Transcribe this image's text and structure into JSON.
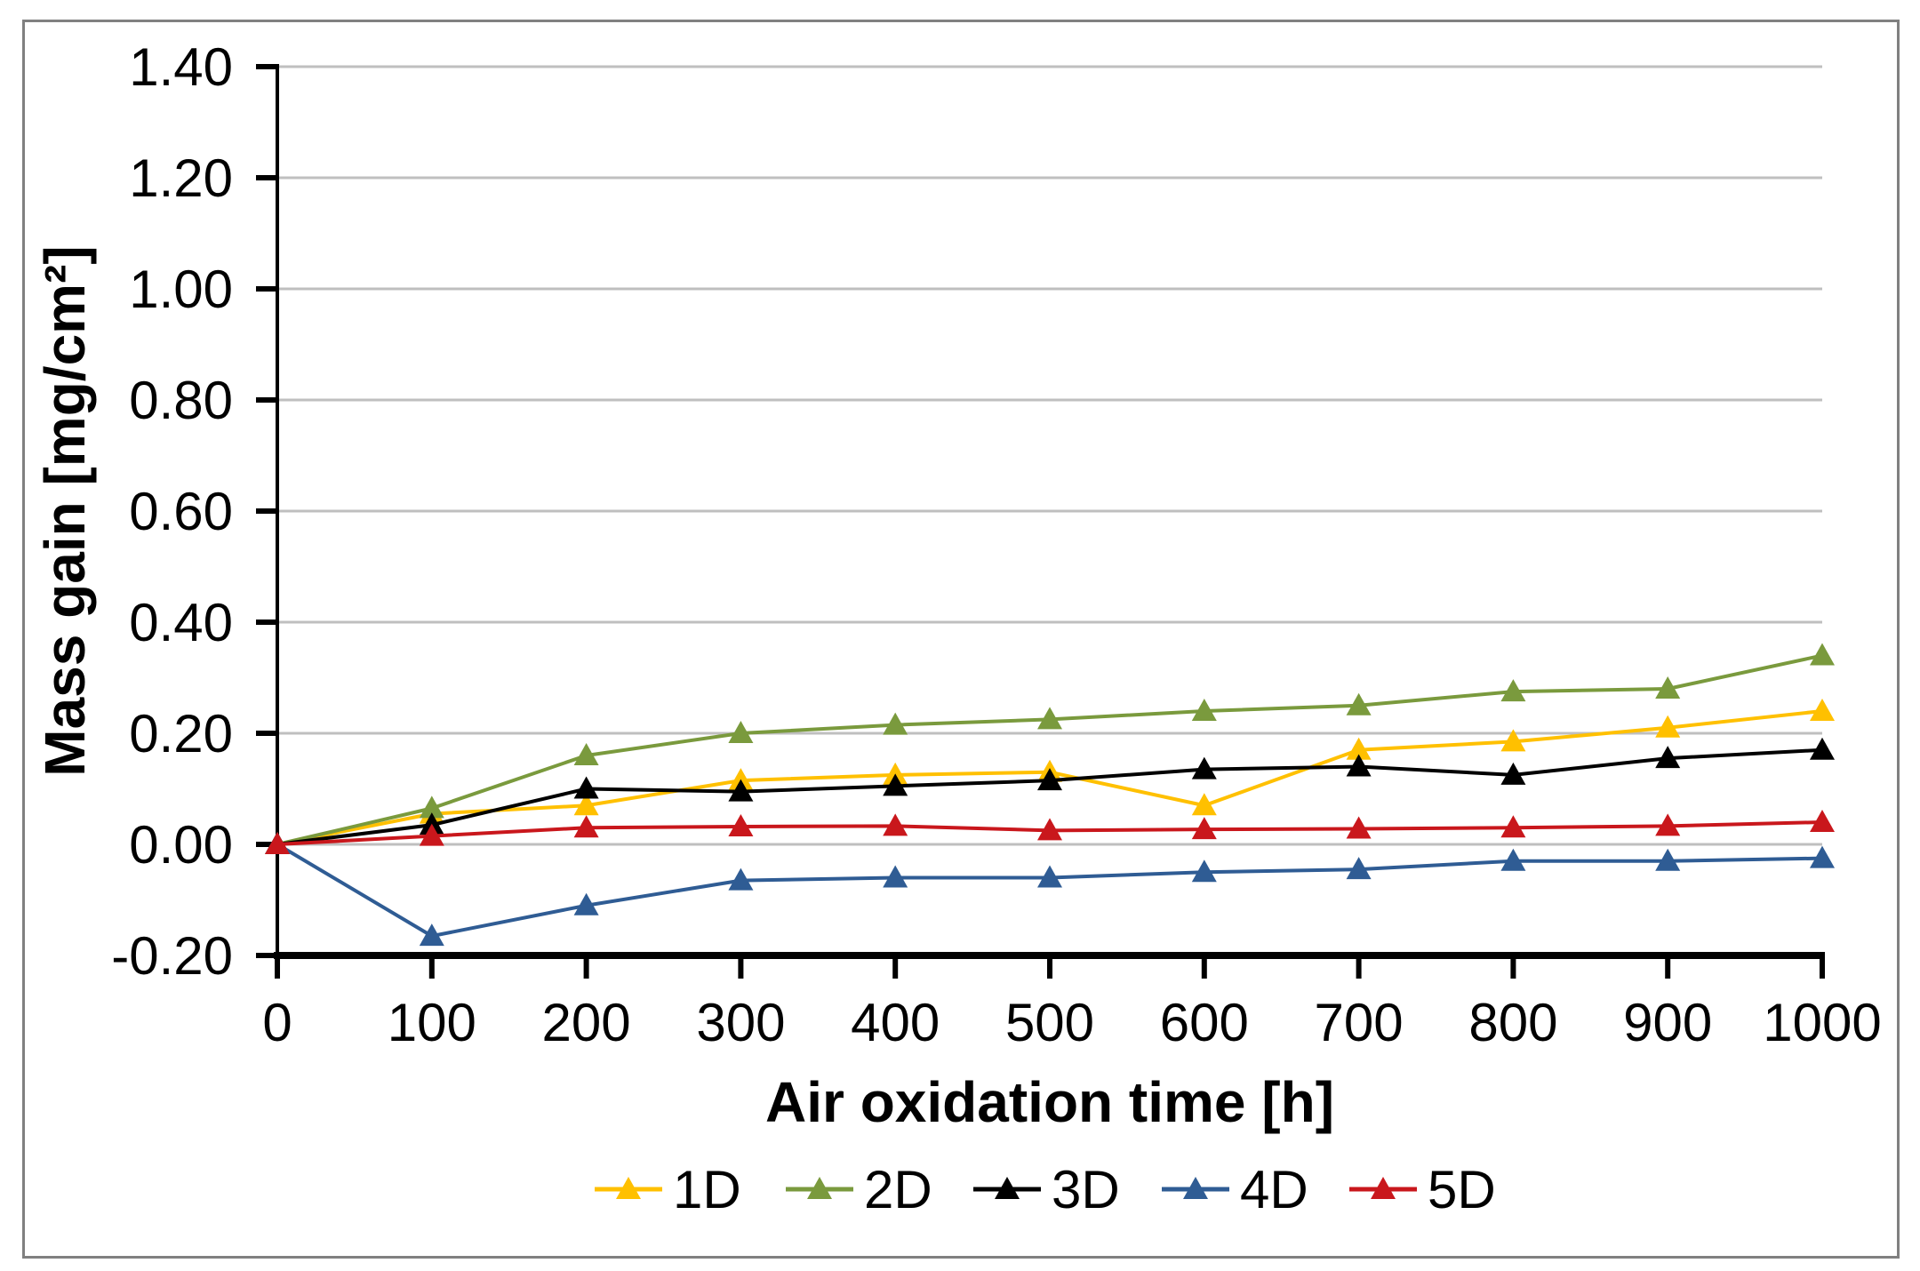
{
  "figure": {
    "background": "#FFFFFF",
    "border_color": "#808080"
  },
  "chart_data": {
    "type": "line",
    "title": "",
    "xlabel": "Air oxidation time [h]",
    "ylabel": "Mass gain [mg/cm²]",
    "x": [
      0,
      100,
      200,
      300,
      400,
      500,
      600,
      700,
      800,
      900,
      1000
    ],
    "xticks": [
      0,
      100,
      200,
      300,
      400,
      500,
      600,
      700,
      800,
      900,
      1000
    ],
    "xtick_labels": [
      "0",
      "100",
      "200",
      "300",
      "400",
      "500",
      "600",
      "700",
      "800",
      "900",
      "1000"
    ],
    "xlim": [
      0,
      1000
    ],
    "ylim": [
      -0.2,
      1.4
    ],
    "yticks": [
      -0.2,
      0.0,
      0.2,
      0.4,
      0.6,
      0.8,
      1.0,
      1.2,
      1.4
    ],
    "ytick_labels": [
      "-0.20",
      "0.00",
      "0.20",
      "0.40",
      "0.60",
      "0.80",
      "1.00",
      "1.20",
      "1.40"
    ],
    "grid": true,
    "gridline_color": "#BFBFBF",
    "axis_color": "#000000",
    "marker": "triangle",
    "legend_position": "bottom",
    "series": [
      {
        "name": "1D",
        "color": "#FFC000",
        "values": [
          0.0,
          0.055,
          0.07,
          0.115,
          0.125,
          0.13,
          0.07,
          0.17,
          0.185,
          0.21,
          0.24
        ]
      },
      {
        "name": "2D",
        "color": "#7A9A3D",
        "values": [
          0.0,
          0.065,
          0.16,
          0.2,
          0.215,
          0.225,
          0.24,
          0.25,
          0.275,
          0.28,
          0.34
        ]
      },
      {
        "name": "3D",
        "color": "#000000",
        "values": [
          0.0,
          0.035,
          0.1,
          0.095,
          0.105,
          0.115,
          0.135,
          0.14,
          0.125,
          0.155,
          0.17
        ]
      },
      {
        "name": "4D",
        "color": "#2F5C94",
        "values": [
          0.0,
          -0.165,
          -0.11,
          -0.065,
          -0.06,
          -0.06,
          -0.05,
          -0.045,
          -0.03,
          -0.03,
          -0.025
        ]
      },
      {
        "name": "5D",
        "color": "#C9171C",
        "values": [
          0.0,
          0.015,
          0.03,
          0.032,
          0.033,
          0.025,
          0.027,
          0.028,
          0.03,
          0.033,
          0.04
        ]
      }
    ]
  }
}
